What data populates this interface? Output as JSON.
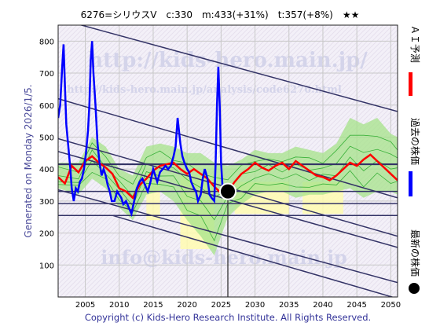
{
  "chart_data": {
    "type": "line",
    "title": "6276=シリウスV　c:330　m:433(+31%)　t:357(+8%)　★★",
    "generated": "Generated on Monday 2026/1/5.",
    "copyright": "Copyright (c) Kids-Hero Research Institute. All Rights Reserved.",
    "watermarks": [
      "http://kids-hero.main.jp/",
      "http://kids-hero.main.jp/analysis/code6276.html",
      "info@kids-hero.main.jp"
    ],
    "legend": [
      {
        "label": "ＡＩ予測",
        "color": "#ff0000"
      },
      {
        "label": "過去の株価",
        "color": "#0000ff"
      },
      {
        "label": "最新の株価",
        "color": "#000000"
      }
    ],
    "xlim": [
      2001,
      2051
    ],
    "ylim": [
      0,
      850
    ],
    "x_ticks": [
      "2005",
      "2010",
      "2015",
      "2020",
      "2025",
      "2030",
      "2035",
      "2040",
      "2045",
      "2050"
    ],
    "y_ticks": [
      "100",
      "200",
      "300",
      "400",
      "500",
      "600",
      "700",
      "800"
    ],
    "current": {
      "x": 2026.0,
      "y": 330
    },
    "hlines": [
      255,
      292,
      330,
      415
    ],
    "trend_lines": [
      {
        "x1": 2001,
        "y1": 870,
        "x2": 2051,
        "y2": 580
      },
      {
        "x1": 2001,
        "y1": 620,
        "x2": 2051,
        "y2": 310
      },
      {
        "x1": 2001,
        "y1": 495,
        "x2": 2051,
        "y2": 190
      },
      {
        "x1": 2001,
        "y1": 455,
        "x2": 2051,
        "y2": 155
      },
      {
        "x1": 2001,
        "y1": 335,
        "x2": 2051,
        "y2": 45
      },
      {
        "x1": 2009,
        "y1": 255,
        "x2": 2051,
        "y2": -5
      }
    ],
    "past_price": [
      [
        2001.0,
        560
      ],
      [
        2001.3,
        600
      ],
      [
        2001.6,
        720
      ],
      [
        2001.8,
        790
      ],
      [
        2002.0,
        660
      ],
      [
        2002.2,
        540
      ],
      [
        2002.5,
        470
      ],
      [
        2002.8,
        400
      ],
      [
        2003.0,
        340
      ],
      [
        2003.3,
        300
      ],
      [
        2003.6,
        340
      ],
      [
        2003.9,
        330
      ],
      [
        2004.2,
        360
      ],
      [
        2004.5,
        370
      ],
      [
        2004.8,
        400
      ],
      [
        2005.1,
        450
      ],
      [
        2005.4,
        520
      ],
      [
        2005.6,
        600
      ],
      [
        2005.8,
        740
      ],
      [
        2006.0,
        800
      ],
      [
        2006.2,
        700
      ],
      [
        2006.5,
        600
      ],
      [
        2006.8,
        480
      ],
      [
        2007.1,
        420
      ],
      [
        2007.4,
        380
      ],
      [
        2007.7,
        400
      ],
      [
        2008.0,
        380
      ],
      [
        2008.3,
        350
      ],
      [
        2008.6,
        330
      ],
      [
        2008.9,
        300
      ],
      [
        2009.3,
        300
      ],
      [
        2009.7,
        330
      ],
      [
        2010.0,
        320
      ],
      [
        2010.3,
        310
      ],
      [
        2010.6,
        290
      ],
      [
        2011.0,
        300
      ],
      [
        2011.4,
        280
      ],
      [
        2011.8,
        260
      ],
      [
        2012.2,
        300
      ],
      [
        2012.6,
        340
      ],
      [
        2013.0,
        360
      ],
      [
        2013.4,
        370
      ],
      [
        2013.8,
        350
      ],
      [
        2014.2,
        330
      ],
      [
        2014.6,
        360
      ],
      [
        2015.0,
        400
      ],
      [
        2015.3,
        380
      ],
      [
        2015.6,
        360
      ],
      [
        2016.0,
        390
      ],
      [
        2016.4,
        400
      ],
      [
        2016.8,
        410
      ],
      [
        2017.2,
        400
      ],
      [
        2017.6,
        410
      ],
      [
        2018.0,
        440
      ],
      [
        2018.3,
        470
      ],
      [
        2018.6,
        560
      ],
      [
        2018.8,
        520
      ],
      [
        2019.0,
        480
      ],
      [
        2019.3,
        440
      ],
      [
        2019.6,
        420
      ],
      [
        2020.0,
        400
      ],
      [
        2020.3,
        390
      ],
      [
        2020.6,
        360
      ],
      [
        2021.0,
        340
      ],
      [
        2021.3,
        330
      ],
      [
        2021.6,
        300
      ],
      [
        2022.0,
        320
      ],
      [
        2022.3,
        370
      ],
      [
        2022.6,
        400
      ],
      [
        2023.0,
        370
      ],
      [
        2023.3,
        320
      ],
      [
        2023.6,
        310
      ],
      [
        2024.0,
        300
      ],
      [
        2024.2,
        420
      ],
      [
        2024.4,
        600
      ],
      [
        2024.6,
        720
      ],
      [
        2024.8,
        600
      ],
      [
        2025.0,
        420
      ],
      [
        2025.2,
        350
      ],
      [
        2025.5,
        320
      ],
      [
        2025.8,
        330
      ],
      [
        2026.0,
        330
      ]
    ],
    "ai_forecast": [
      [
        2001,
        375
      ],
      [
        2002,
        355
      ],
      [
        2003,
        410
      ],
      [
        2004,
        390
      ],
      [
        2005,
        425
      ],
      [
        2006,
        440
      ],
      [
        2007,
        420
      ],
      [
        2008,
        405
      ],
      [
        2009,
        385
      ],
      [
        2010,
        340
      ],
      [
        2011,
        330
      ],
      [
        2012,
        310
      ],
      [
        2013,
        350
      ],
      [
        2014,
        370
      ],
      [
        2015,
        395
      ],
      [
        2016,
        410
      ],
      [
        2017,
        415
      ],
      [
        2018,
        420
      ],
      [
        2019,
        400
      ],
      [
        2020,
        385
      ],
      [
        2021,
        400
      ],
      [
        2022,
        385
      ],
      [
        2023,
        370
      ],
      [
        2024,
        345
      ],
      [
        2025,
        325
      ],
      [
        2026,
        330
      ],
      [
        2027,
        360
      ],
      [
        2028,
        385
      ],
      [
        2029,
        400
      ],
      [
        2030,
        420
      ],
      [
        2031,
        405
      ],
      [
        2032,
        395
      ],
      [
        2033,
        410
      ],
      [
        2034,
        420
      ],
      [
        2035,
        400
      ],
      [
        2036,
        425
      ],
      [
        2037,
        410
      ],
      [
        2038,
        395
      ],
      [
        2039,
        380
      ],
      [
        2040,
        375
      ],
      [
        2041,
        365
      ],
      [
        2042,
        380
      ],
      [
        2043,
        400
      ],
      [
        2044,
        420
      ],
      [
        2045,
        410
      ],
      [
        2046,
        430
      ],
      [
        2047,
        445
      ],
      [
        2048,
        425
      ],
      [
        2049,
        405
      ],
      [
        2050,
        385
      ],
      [
        2051,
        365
      ]
    ],
    "band_upper": [
      [
        2001,
        420
      ],
      [
        2004,
        420
      ],
      [
        2006,
        500
      ],
      [
        2008,
        470
      ],
      [
        2010,
        400
      ],
      [
        2012,
        380
      ],
      [
        2014,
        470
      ],
      [
        2016,
        480
      ],
      [
        2018,
        470
      ],
      [
        2020,
        450
      ],
      [
        2022,
        450
      ],
      [
        2024,
        420
      ],
      [
        2026,
        410
      ],
      [
        2028,
        430
      ],
      [
        2030,
        460
      ],
      [
        2032,
        450
      ],
      [
        2034,
        450
      ],
      [
        2036,
        470
      ],
      [
        2038,
        460
      ],
      [
        2040,
        450
      ],
      [
        2042,
        480
      ],
      [
        2044,
        560
      ],
      [
        2046,
        540
      ],
      [
        2048,
        560
      ],
      [
        2050,
        510
      ],
      [
        2051,
        500
      ]
    ],
    "band_lower": [
      [
        2001,
        340
      ],
      [
        2004,
        320
      ],
      [
        2006,
        370
      ],
      [
        2008,
        340
      ],
      [
        2010,
        280
      ],
      [
        2012,
        240
      ],
      [
        2014,
        320
      ],
      [
        2016,
        330
      ],
      [
        2018,
        300
      ],
      [
        2020,
        240
      ],
      [
        2022,
        190
      ],
      [
        2024,
        130
      ],
      [
        2026,
        250
      ],
      [
        2028,
        290
      ],
      [
        2030,
        320
      ],
      [
        2032,
        330
      ],
      [
        2034,
        330
      ],
      [
        2036,
        310
      ],
      [
        2038,
        320
      ],
      [
        2040,
        320
      ],
      [
        2042,
        330
      ],
      [
        2044,
        340
      ],
      [
        2046,
        310
      ],
      [
        2048,
        330
      ],
      [
        2050,
        330
      ],
      [
        2051,
        320
      ]
    ],
    "yellow_zones": [
      {
        "x0": 2014,
        "x1": 2016,
        "top": 390,
        "bottom": 240
      },
      {
        "x0": 2019,
        "x1": 2024,
        "top": 380,
        "bottom": 150
      },
      {
        "x0": 2027,
        "x1": 2035,
        "top": 360,
        "bottom": 260
      },
      {
        "x0": 2037,
        "x1": 2043,
        "top": 360,
        "bottom": 260
      }
    ]
  }
}
